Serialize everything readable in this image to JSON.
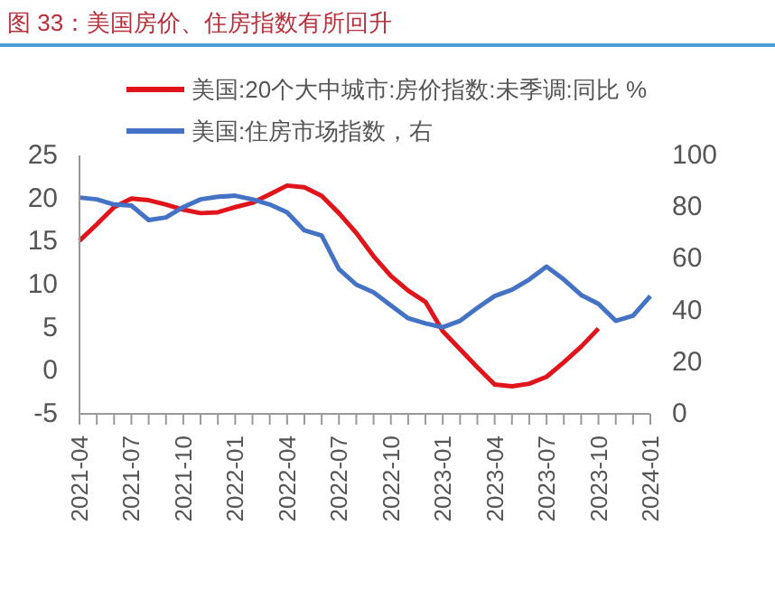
{
  "chart_data": {
    "type": "line",
    "title": "图 33：美国房价、住房指数有所回升",
    "categories": [
      "2021-04",
      null,
      null,
      "2021-07",
      null,
      null,
      "2021-10",
      null,
      null,
      "2022-01",
      null,
      null,
      "2022-04",
      null,
      null,
      "2022-07",
      null,
      null,
      "2022-10",
      null,
      null,
      "2023-01",
      null,
      null,
      "2023-04",
      null,
      null,
      "2023-07",
      null,
      null,
      "2023-10",
      null,
      null,
      "2024-01"
    ],
    "series": [
      {
        "name": "美国:20个大中城市:房价指数:未季调:同比 %",
        "color": "#e0151b",
        "values": [
          15.1,
          17,
          19,
          20,
          19.8,
          19.3,
          18.7,
          18.3,
          18.4,
          19,
          19.5,
          20.5,
          21.5,
          21.3,
          20.3,
          18.3,
          16,
          13.3,
          11,
          9.3,
          8,
          4.6,
          2.5,
          0.4,
          -1.6,
          -1.8,
          -1.5,
          -0.7,
          1,
          2.8,
          4.9,
          null,
          null,
          null
        ]
      },
      {
        "name": "美国:住房市场指数，右",
        "color": "#4472c4",
        "axis": "y2",
        "values": [
          83.7,
          83,
          81,
          80.6,
          75,
          76,
          80,
          83,
          84,
          84.4,
          83,
          81,
          78,
          71,
          69,
          56,
          50,
          47,
          42,
          37,
          35,
          33.5,
          36,
          41,
          45.6,
          48,
          52,
          57,
          52,
          46,
          42.6,
          36,
          38,
          45.6
        ]
      }
    ],
    "ylim": [
      -5,
      25
    ],
    "yticks": [
      -5,
      0,
      5,
      10,
      15,
      20,
      25
    ],
    "y2lim": [
      0,
      100
    ],
    "y2ticks": [
      0,
      20,
      40,
      60,
      80,
      100
    ],
    "legend": "top"
  }
}
